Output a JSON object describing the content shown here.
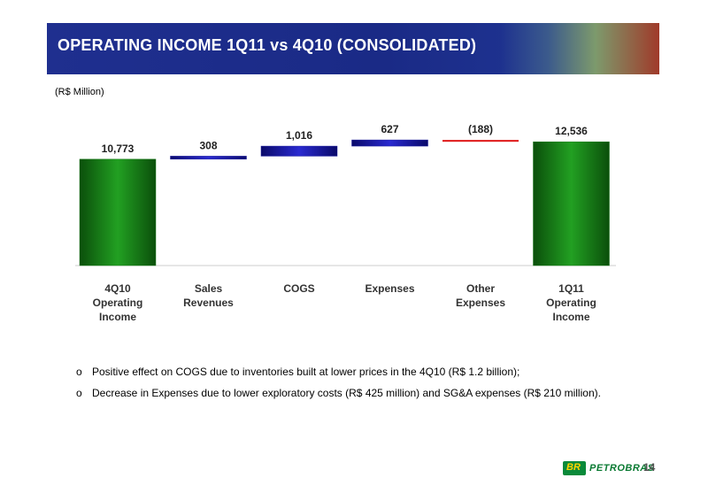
{
  "slide": {
    "title": "OPERATING INCOME 1Q11 vs 4Q10 (CONSOLIDATED)",
    "unit_label": "(R$ Million)",
    "page_number": "14",
    "logo_text": "PETROBRAS",
    "logo_mark": "BR"
  },
  "notes": {
    "bullet_symbol": "o",
    "items": [
      "Positive effect on COGS due to inventories built at lower prices in the 4Q10 (R$ 1.2 billion);",
      "Decrease in Expenses due to lower exploratory costs (R$ 425 million) and  SG&A expenses (R$ 210 million)."
    ]
  },
  "chart_data": {
    "type": "bar",
    "subtype": "waterfall",
    "unit": "(R$ Million)",
    "categories": [
      [
        "4Q10",
        "Operating",
        "Income"
      ],
      [
        "Sales",
        "Revenues"
      ],
      [
        "COGS"
      ],
      [
        "Expenses"
      ],
      [
        "Other",
        "Expenses"
      ],
      [
        "1Q11",
        "Operating",
        "Income"
      ]
    ],
    "values": [
      10773,
      308,
      1016,
      627,
      -188,
      12536
    ],
    "labels": [
      "10,773",
      "308",
      "1,016",
      "627",
      "(188)",
      "12,536"
    ],
    "kinds": [
      "total",
      "increase",
      "increase",
      "increase",
      "decrease",
      "total"
    ],
    "colors": {
      "total": "#1a7a1a",
      "increase": "#1a1aa0",
      "decrease": "#e02020",
      "negative_label": "#cc0000"
    },
    "ylim": [
      0,
      13000
    ],
    "grid": false,
    "legend": "none"
  }
}
